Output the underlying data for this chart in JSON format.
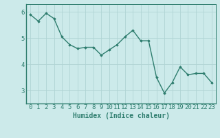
{
  "x": [
    0,
    1,
    2,
    3,
    4,
    5,
    6,
    7,
    8,
    9,
    10,
    11,
    12,
    13,
    14,
    15,
    16,
    17,
    18,
    19,
    20,
    21,
    22,
    23
  ],
  "y": [
    5.9,
    5.65,
    5.95,
    5.75,
    5.05,
    4.75,
    4.6,
    4.65,
    4.65,
    4.35,
    4.55,
    4.75,
    5.05,
    5.3,
    4.9,
    4.9,
    3.5,
    2.9,
    3.3,
    3.9,
    3.6,
    3.65,
    3.65,
    3.3
  ],
  "line_color": "#2e7d6e",
  "marker": "D",
  "markersize": 1.8,
  "linewidth": 1.0,
  "bg_color": "#cceaea",
  "grid_color": "#b0d4d4",
  "xlabel": "Humidex (Indice chaleur)",
  "xlabel_fontsize": 7,
  "tick_fontsize": 6.5,
  "ylim": [
    2.5,
    6.3
  ],
  "xlim": [
    -0.5,
    23.5
  ],
  "yticks": [
    3,
    4,
    5,
    6
  ],
  "xtick_labels": [
    "0",
    "1",
    "2",
    "3",
    "4",
    "5",
    "6",
    "7",
    "8",
    "9",
    "10",
    "11",
    "12",
    "13",
    "14",
    "15",
    "16",
    "17",
    "18",
    "19",
    "20",
    "21",
    "22",
    "23"
  ]
}
